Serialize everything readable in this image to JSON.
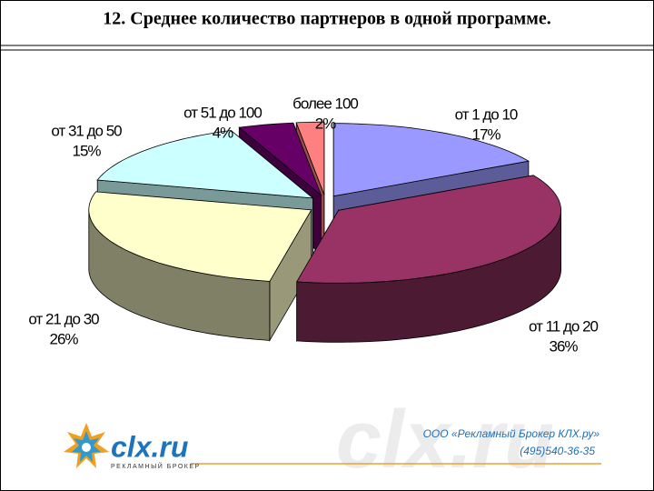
{
  "chart_data": {
    "type": "pie3d",
    "title": "12. Среднее количество партнеров в одной программе.",
    "categories": [
      "от 1 до 10",
      "от 11 до 20",
      "от 21 до 30",
      "от 31 до 50",
      "от 51 до 100",
      "более 100"
    ],
    "values": [
      17,
      36,
      26,
      15,
      4,
      2
    ],
    "value_labels": [
      "17%",
      "36%",
      "26%",
      "15%",
      "4%",
      "2%"
    ],
    "colors": [
      "#9999ff",
      "#993366",
      "#ffffcc",
      "#ccffff",
      "#660066",
      "#ff8080"
    ]
  },
  "footer": {
    "logo": "clx.ru",
    "logo_subtitle": "РЕКЛАМНЫЙ БРОКЕР",
    "watermark": "clx.ru",
    "company": "ООО «Рекламный Брокер КЛХ.ру»",
    "phone": "(495)540-36-35"
  }
}
